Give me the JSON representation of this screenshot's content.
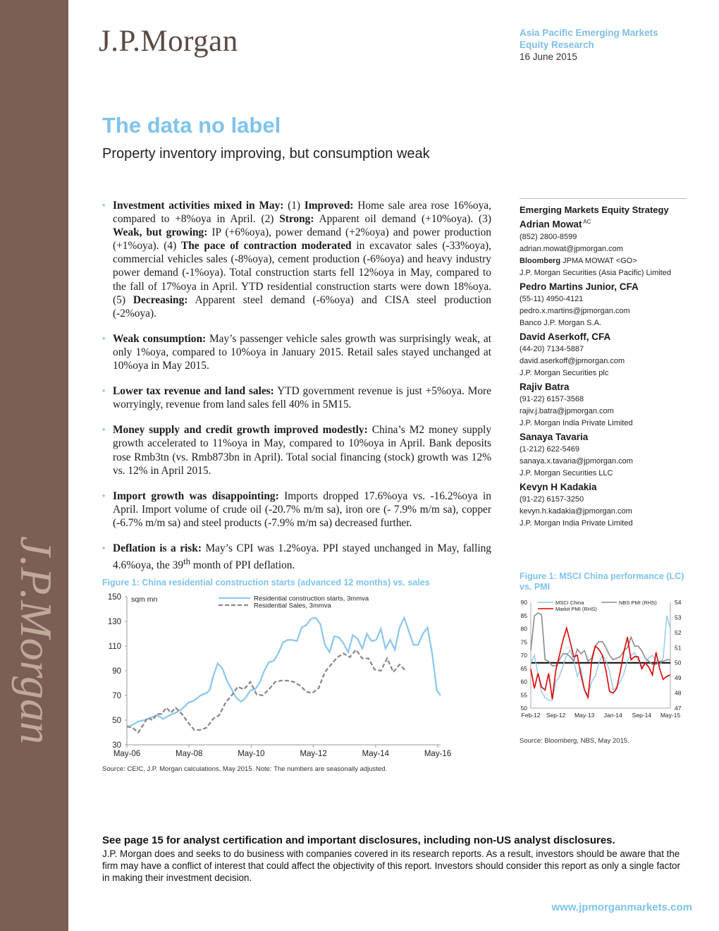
{
  "header": {
    "logo": "J.P.Morgan",
    "watermark": "J.P.Morgan",
    "region": "Asia Pacific Emerging Markets",
    "dept": "Equity Research",
    "date": "16 June 2015"
  },
  "title": "The data no label",
  "subtitle": "Property inventory improving, but consumption weak",
  "bullets": [
    "<b>Investment activities mixed in May:</b> (1) <b>Improved:</b> Home sale area rose 16%oya, compared to +8%oya in April. (2) <b>Strong:</b> Apparent oil demand (+10%oya). (3) <b>Weak, but growing:</b> IP (+6%oya), power demand (+2%oya) and power production (+1%oya). (4) <b>The pace of contraction moderated</b> in excavator sales (-33%oya), commercial vehicles sales (-8%oya), cement production (-6%oya) and heavy industry power demand (-1%oya). Total construction starts fell 12%oya in May, compared to the fall of 17%oya in April. YTD residential construction starts were down 18%oya. (5) <b>Decreasing:</b> Apparent steel demand (-6%oya) and CISA steel production (-2%oya).",
    "<b>Weak consumption:</b> May’s passenger vehicle sales growth was surprisingly weak, at only 1%oya, compared to 10%oya in January 2015. Retail sales stayed unchanged at 10%oya in May 2015.",
    "<b>Lower tax revenue and land sales:</b> YTD government revenue is just +5%oya. More worryingly, revenue from land sales fell 40% in 5M15.",
    "<b>Money supply and credit growth improved modestly:</b> China’s M2 money supply growth accelerated to 11%oya in May, compared to 10%oya in April. Bank deposits rose Rmb3tn (vs. Rmb873bn in April). Total social financing (stock) growth was 12% vs. 12% in April 2015.",
    "<b>Import growth was disappointing:</b> Imports dropped 17.6%oya vs. -16.2%oya in April. Import volume of crude oil (-20.7% m/m sa), iron ore (- 7.9% m/m sa), copper (-6.7% m/m sa) and steel products (-7.9% m/m sa) decreased further.",
    "<b>Deflation is a risk:</b> May’s CPI was 1.2%oya. PPI stayed unchanged in May, falling 4.6%oya, the 39<sup>th</sup> month of PPI deflation."
  ],
  "analysts": {
    "team": "Emerging Markets Equity Strategy",
    "people": [
      {
        "name": "Adrian Mowat",
        "sup": "AC",
        "phone": "(852) 2800-8599",
        "email": "adrian.mowat@jpmorgan.com",
        "bloomberg_label": "Bloomberg",
        "bloomberg": "JPMA MOWAT <GO>",
        "firm": "J.P. Morgan Securities (Asia Pacific) Limited"
      },
      {
        "name": "Pedro Martins Junior, CFA",
        "sup": "",
        "phone": "(55-11) 4950-4121",
        "email": "pedro.x.martins@jpmorgan.com",
        "bloomberg_label": "",
        "bloomberg": "",
        "firm": "Banco J.P. Morgan S.A."
      },
      {
        "name": "David Aserkoff, CFA",
        "sup": "",
        "phone": "(44-20) 7134-5887",
        "email": "david.aserkoff@jpmorgan.com",
        "bloomberg_label": "",
        "bloomberg": "",
        "firm": "J.P. Morgan Securities plc"
      },
      {
        "name": "Rajiv Batra",
        "sup": "",
        "phone": "(91-22) 6157-3568",
        "email": "rajiv.j.batra@jpmorgan.com",
        "bloomberg_label": "",
        "bloomberg": "",
        "firm": "J.P. Morgan India Private Limited"
      },
      {
        "name": "Sanaya Tavaria",
        "sup": "",
        "phone": "(1-212) 622-5469",
        "email": "sanaya.x.tavaria@jpmorgan.com",
        "bloomberg_label": "",
        "bloomberg": "",
        "firm": "J.P. Morgan Securities LLC"
      },
      {
        "name": "Kevyn H Kadakia",
        "sup": "",
        "phone": "(91-22) 6157-3250",
        "email": "kevyn.h.kadakia@jpmorgan.com",
        "bloomberg_label": "",
        "bloomberg": "",
        "firm": "J.P. Morgan India Private Limited"
      }
    ]
  },
  "figures": {
    "fig1_title": "Figure 1: China residential construction starts (advanced 12 months) vs. sales",
    "fig1_source": "Source: CEIC, J.P. Morgan calculations, May 2015. Note: The numbers are seasonally adjusted.",
    "fig2_title": "Figure 1: MSCI China performance (LC) vs. PMI",
    "fig2_source": "Source: Bloomberg, NBS, May 2015."
  },
  "chart_data": [
    {
      "type": "line",
      "title": "Figure 1: China residential construction starts (advanced 12 months) vs. sales",
      "ylabel": "sqm mn",
      "ylim": [
        30,
        150
      ],
      "yticks": [
        30,
        50,
        70,
        90,
        110,
        130,
        150
      ],
      "xlim": [
        2006.33,
        2016.42
      ],
      "xticks": [
        {
          "v": 2006.33,
          "label": "May-06"
        },
        {
          "v": 2008.33,
          "label": "May-08"
        },
        {
          "v": 2010.33,
          "label": "May-10"
        },
        {
          "v": 2012.33,
          "label": "May-12"
        },
        {
          "v": 2014.33,
          "label": "May-14"
        },
        {
          "v": 2016.33,
          "label": "May-16"
        }
      ],
      "colors": {
        "starts": "#8ec8ee",
        "sales": "#8a8a8a"
      },
      "series": [
        {
          "name": "Residential construction starts, 3mmva",
          "style": "solid",
          "x": [
            2006.33,
            2006.5,
            2006.7,
            2006.9,
            2007.1,
            2007.3,
            2007.5,
            2007.7,
            2007.9,
            2008.1,
            2008.3,
            2008.5,
            2008.7,
            2008.9,
            2009.0,
            2009.1,
            2009.25,
            2009.4,
            2009.55,
            2009.7,
            2009.85,
            2010.0,
            2010.15,
            2010.3,
            2010.45,
            2010.6,
            2010.75,
            2010.9,
            2011.05,
            2011.2,
            2011.35,
            2011.5,
            2011.65,
            2011.8,
            2011.95,
            2012.1,
            2012.25,
            2012.4,
            2012.55,
            2012.7,
            2012.85,
            2013.0,
            2013.15,
            2013.3,
            2013.45,
            2013.6,
            2013.75,
            2013.9,
            2014.05,
            2014.2,
            2014.35,
            2014.5,
            2014.65,
            2014.8,
            2014.95,
            2015.1,
            2015.25,
            2015.4,
            2015.55,
            2015.7,
            2015.85,
            2016.0,
            2016.15,
            2016.3,
            2016.42
          ],
          "values": [
            44,
            46,
            49,
            50,
            52,
            54,
            51,
            54,
            56,
            59,
            64,
            66,
            70,
            72,
            75,
            85,
            96,
            92,
            82,
            75,
            68,
            65,
            68,
            74,
            75,
            80,
            90,
            97,
            98,
            104,
            113,
            115,
            115,
            114,
            125,
            127,
            132,
            133,
            128,
            111,
            105,
            118,
            117,
            112,
            105,
            119,
            116,
            108,
            120,
            114,
            115,
            124,
            108,
            115,
            107,
            125,
            133,
            122,
            111,
            111,
            120,
            125,
            104,
            74,
            70
          ]
        },
        {
          "name": "Residential Sales, 3mmva",
          "style": "dashed",
          "x": [
            2006.33,
            2006.5,
            2006.7,
            2006.85,
            2007.0,
            2007.15,
            2007.3,
            2007.45,
            2007.6,
            2007.75,
            2007.9,
            2008.1,
            2008.3,
            2008.5,
            2008.7,
            2008.9,
            2009.1,
            2009.3,
            2009.5,
            2009.7,
            2009.9,
            2010.1,
            2010.3,
            2010.5,
            2010.7,
            2010.9,
            2011.1,
            2011.3,
            2011.5,
            2011.7,
            2011.9,
            2012.1,
            2012.3,
            2012.5,
            2012.7,
            2012.9,
            2013.1,
            2013.3,
            2013.5,
            2013.7,
            2013.9,
            2014.1,
            2014.3,
            2014.5,
            2014.7,
            2014.9,
            2015.1,
            2015.3
          ],
          "values": [
            45,
            44,
            40,
            46,
            52,
            50,
            55,
            55,
            60,
            56,
            60,
            55,
            48,
            42,
            42,
            44,
            51,
            54,
            64,
            70,
            77,
            75,
            81,
            71,
            70,
            75,
            81,
            82,
            82,
            81,
            78,
            73,
            72,
            76,
            89,
            95,
            101,
            104,
            101,
            107,
            100,
            100,
            91,
            90,
            100,
            89,
            95,
            90
          ]
        }
      ]
    },
    {
      "type": "line",
      "title": "Figure 1: MSCI China performance (LC) vs. PMI",
      "ylim_left": [
        50,
        90
      ],
      "yticks_left": [
        50,
        55,
        60,
        65,
        70,
        75,
        80,
        85,
        90
      ],
      "ylim_right": [
        47,
        54
      ],
      "yticks_right": [
        47,
        48,
        49,
        50,
        51,
        52,
        53,
        54
      ],
      "xlim": [
        0,
        39
      ],
      "xticks": [
        {
          "v": 0,
          "label": "Feb-12"
        },
        {
          "v": 7,
          "label": "Sep-12"
        },
        {
          "v": 15,
          "label": "May-13"
        },
        {
          "v": 23,
          "label": "Jan-14"
        },
        {
          "v": 31,
          "label": "Sep-14"
        },
        {
          "v": 39,
          "label": "May-15"
        }
      ],
      "reference_line": {
        "axis": "right",
        "value": 50,
        "color": "#000000"
      },
      "colors": {
        "msci": "#8ec8ee",
        "nbs": "#8a8a8a",
        "markit": "#e00000"
      },
      "series": [
        {
          "name": "MSCI China",
          "axis": "left",
          "x": [
            0,
            1,
            2,
            3,
            4,
            5,
            6,
            7,
            8,
            9,
            10,
            11,
            12,
            13,
            14,
            15,
            16,
            17,
            18,
            19,
            20,
            21,
            22,
            23,
            24,
            25,
            26,
            27,
            28,
            29,
            30,
            31,
            32,
            33,
            34,
            35,
            36,
            37,
            38,
            39
          ],
          "values": [
            67,
            70,
            63,
            56,
            54,
            53,
            53,
            60,
            62,
            66,
            70,
            72,
            68,
            62,
            65,
            57,
            55,
            60,
            62,
            67,
            70,
            68,
            64,
            57,
            58,
            60,
            63,
            68,
            70,
            71,
            68,
            66,
            67,
            69,
            70,
            68,
            66,
            69,
            85,
            80
          ]
        },
        {
          "name": "NBS PMI (RHS)",
          "axis": "right",
          "x": [
            0,
            1,
            2,
            3,
            4,
            5,
            6,
            7,
            8,
            9,
            10,
            11,
            12,
            13,
            14,
            15,
            16,
            17,
            18,
            19,
            20,
            21,
            22,
            23,
            24,
            25,
            26,
            27,
            28,
            29,
            30,
            31,
            32,
            33,
            34,
            35,
            36,
            37,
            38,
            39
          ],
          "values": [
            50.8,
            53.1,
            53.3,
            53.2,
            50.2,
            50.1,
            49.8,
            49.8,
            50.2,
            50.6,
            50.6,
            50.4,
            50.1,
            50.9,
            50.6,
            50.8,
            50.1,
            50.3,
            51.1,
            51.4,
            51.4,
            51.0,
            50.5,
            50.2,
            50.3,
            50.4,
            50.8,
            51.0,
            51.7,
            51.1,
            51.1,
            50.8,
            50.3,
            50.1,
            49.9,
            49.9,
            50.1,
            50.1,
            50.2,
            50.2
          ]
        },
        {
          "name": "Markit PMI (RHS)",
          "axis": "right",
          "x": [
            0,
            1,
            2,
            3,
            4,
            5,
            6,
            7,
            8,
            9,
            10,
            11,
            12,
            13,
            14,
            15,
            16,
            17,
            18,
            19,
            20,
            21,
            22,
            23,
            24,
            25,
            26,
            27,
            28,
            29,
            30,
            31,
            32,
            33,
            34,
            35,
            36,
            37,
            38,
            39
          ],
          "values": [
            49.6,
            48.3,
            49.3,
            48.4,
            48.2,
            49.3,
            47.6,
            49.5,
            50.5,
            51.5,
            52.3,
            51.4,
            50.4,
            50.5,
            49.2,
            48.2,
            47.7,
            50.1,
            51.1,
            50.9,
            50.5,
            49.5,
            48.1,
            48.0,
            48.3,
            49.4,
            50.7,
            51.7,
            50.2,
            50.4,
            50.4,
            49.6,
            50.0,
            49.7,
            49.2,
            50.7,
            49.6,
            48.9,
            49.1,
            49.2
          ]
        }
      ]
    }
  ]
}
